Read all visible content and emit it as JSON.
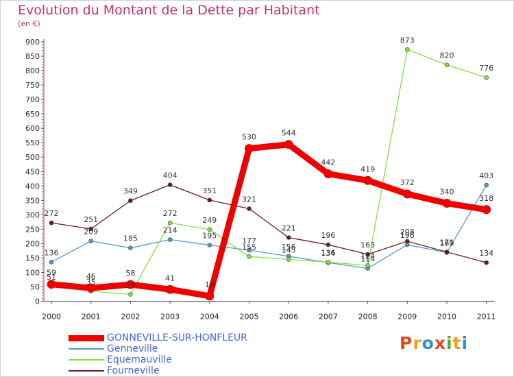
{
  "header": {
    "title": "Evolution du Montant de la Dette par Habitant",
    "subtitle": "(en €)"
  },
  "logo": {
    "letters": [
      "P",
      "r",
      "o",
      "x",
      "i",
      "t",
      "i"
    ],
    "colors": [
      "#e04a1b",
      "#f2a01c",
      "#2c8fd6",
      "#e04a1b",
      "#4caf2a",
      "#f2a01c",
      "#2c8fd6"
    ]
  },
  "chart_data": {
    "type": "line",
    "title": "Evolution du Montant de la Dette par Habitant",
    "subtitle": "(en €)",
    "x": [
      "2000",
      "2001",
      "2002",
      "2003",
      "2004",
      "2005",
      "2006",
      "2007",
      "2008",
      "2009",
      "2010",
      "2011"
    ],
    "ylim": [
      0,
      900
    ],
    "yticks": [
      0,
      50,
      100,
      150,
      200,
      250,
      300,
      350,
      400,
      450,
      500,
      550,
      600,
      650,
      700,
      750,
      800,
      850,
      900
    ],
    "grid": false,
    "legend_position": "bottom-left",
    "series": [
      {
        "name": "GONNEVILLE-SUR-HONFLEUR",
        "color": "#ee0000",
        "values": [
          59,
          46,
          58,
          41,
          18,
          530,
          544,
          442,
          419,
          372,
          340,
          318
        ]
      },
      {
        "name": "Genneville",
        "color": "#5599cc",
        "values": [
          136,
          209,
          185,
          214,
          195,
          177,
          156,
          134,
          114,
          196,
          169,
          403
        ]
      },
      {
        "name": "Equemauville",
        "color": "#88dd44",
        "values": [
          51,
          35,
          24,
          272,
          249,
          155,
          145,
          136,
          124,
          873,
          820,
          776
        ]
      },
      {
        "name": "Fourneville",
        "color": "#6b1a22",
        "values": [
          272,
          251,
          349,
          404,
          351,
          321,
          221,
          196,
          163,
          208,
          171,
          134
        ]
      }
    ]
  }
}
